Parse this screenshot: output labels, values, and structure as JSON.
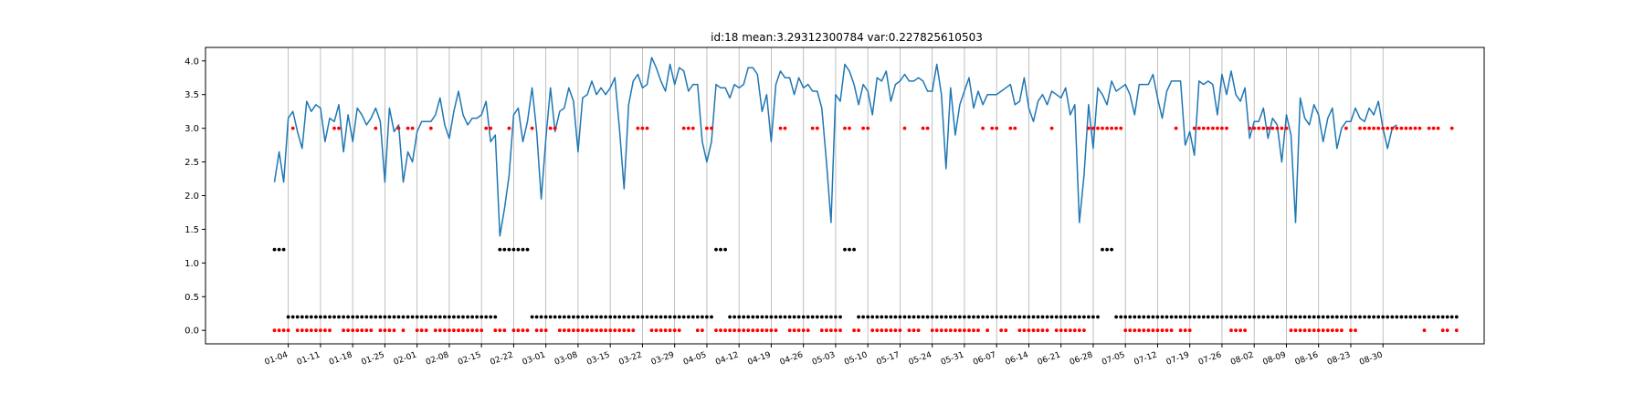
{
  "chart_data": {
    "type": "line",
    "title": "id:18  mean:3.29312300784  var:0.227825610503",
    "xlabel": "",
    "ylabel": "",
    "ylim": [
      -0.2,
      4.2
    ],
    "yticks": [
      0.0,
      0.5,
      1.0,
      1.5,
      2.0,
      2.5,
      3.0,
      3.5,
      4.0
    ],
    "ytick_labels": [
      "0.0",
      "0.5",
      "1.0",
      "1.5",
      "2.0",
      "2.5",
      "3.0",
      "3.5",
      "4.0"
    ],
    "xlim": [
      -15,
      263
    ],
    "xtick_labels": [
      "01-04",
      "01-11",
      "01-18",
      "01-25",
      "02-01",
      "02-08",
      "02-15",
      "02-22",
      "03-01",
      "03-08",
      "03-15",
      "03-22",
      "03-29",
      "04-05",
      "04-12",
      "04-19",
      "04-26",
      "05-03",
      "05-10",
      "05-17",
      "05-24",
      "05-31",
      "06-07",
      "06-14",
      "06-21",
      "06-28",
      "07-05",
      "07-12",
      "07-19",
      "07-26",
      "08-02",
      "08-09",
      "08-16",
      "08-23",
      "08-30"
    ],
    "grid": "vertical lines at each x tick",
    "series": [
      {
        "kind": "line",
        "color": "#1f77b4",
        "x_start": "01-01",
        "values": [
          2.2,
          2.65,
          2.2,
          3.15,
          3.25,
          2.95,
          2.7,
          3.4,
          3.25,
          3.35,
          3.3,
          2.8,
          3.15,
          3.1,
          3.35,
          2.65,
          3.2,
          2.8,
          3.3,
          3.2,
          3.05,
          3.15,
          3.3,
          3.1,
          2.2,
          3.3,
          2.95,
          3.05,
          2.2,
          2.65,
          2.5,
          2.95,
          3.1,
          3.1,
          3.1,
          3.2,
          3.45,
          3.05,
          2.85,
          3.25,
          3.55,
          3.2,
          3.05,
          3.15,
          3.15,
          3.2,
          3.4,
          2.8,
          2.9,
          1.4,
          1.8,
          2.3,
          3.2,
          3.3,
          2.8,
          3.1,
          3.6,
          2.95,
          1.95,
          2.85,
          3.6,
          2.95,
          3.25,
          3.3,
          3.6,
          3.4,
          2.65,
          3.45,
          3.5,
          3.7,
          3.5,
          3.6,
          3.5,
          3.6,
          3.75,
          3.0,
          2.1,
          3.35,
          3.7,
          3.8,
          3.6,
          3.65,
          4.05,
          3.9,
          3.7,
          3.55,
          3.95,
          3.65,
          3.9,
          3.85,
          3.55,
          3.65,
          3.65,
          2.8,
          2.5,
          2.8,
          3.65,
          3.6,
          3.6,
          3.45,
          3.65,
          3.6,
          3.65,
          3.9,
          3.9,
          3.8,
          3.25,
          3.5,
          2.8,
          3.65,
          3.85,
          3.75,
          3.75,
          3.5,
          3.75,
          3.6,
          3.65,
          3.55,
          3.55,
          3.3,
          2.5,
          1.6,
          3.5,
          3.4,
          3.95,
          3.85,
          3.65,
          3.35,
          3.65,
          3.55,
          3.2,
          3.75,
          3.7,
          3.85,
          3.4,
          3.65,
          3.7,
          3.8,
          3.7,
          3.7,
          3.75,
          3.7,
          3.55,
          3.55,
          3.95,
          3.5,
          2.4,
          3.6,
          2.9,
          3.35,
          3.55,
          3.75,
          3.3,
          3.55,
          3.35,
          3.5,
          3.5,
          3.5,
          3.55,
          3.6,
          3.65,
          3.35,
          3.4,
          3.75,
          3.3,
          3.1,
          3.4,
          3.5,
          3.35,
          3.55,
          3.5,
          3.45,
          3.6,
          3.2,
          3.35,
          1.6,
          2.3,
          3.35,
          2.7,
          3.6,
          3.5,
          3.35,
          3.7,
          3.55,
          3.6,
          3.65,
          3.5,
          3.2,
          3.65,
          3.65,
          3.65,
          3.8,
          3.45,
          3.15,
          3.55,
          3.7,
          3.7,
          3.7,
          2.75,
          2.95,
          2.6,
          3.7,
          3.65,
          3.7,
          3.65,
          3.2,
          3.8,
          3.5,
          3.85,
          3.5,
          3.4,
          3.6,
          2.85,
          3.1,
          3.1,
          3.3,
          2.85,
          3.15,
          3.05,
          2.5,
          3.2,
          2.9,
          1.6,
          3.45,
          3.15,
          3.05,
          3.35,
          3.2,
          2.8,
          3.15,
          3.3,
          2.7,
          3.0,
          3.1,
          3.1,
          3.3,
          3.15,
          3.1,
          3.3,
          3.2,
          3.4,
          3.0,
          2.7,
          3.0,
          3.05
        ]
      },
      {
        "kind": "points",
        "color": "#ff0000",
        "y": 3.0,
        "x": [
          4,
          13,
          14,
          22,
          27,
          29,
          30,
          34,
          46,
          47,
          51,
          56,
          60,
          61,
          79,
          80,
          81,
          89,
          90,
          91,
          94,
          95,
          110,
          111,
          117,
          118,
          124,
          125,
          128,
          129,
          137,
          141,
          142,
          154,
          156,
          157,
          160,
          161,
          169,
          177,
          178,
          179,
          180,
          181,
          182,
          183,
          184,
          196,
          200,
          201,
          202,
          203,
          204,
          205,
          206,
          207,
          212,
          213,
          214,
          215,
          216,
          217,
          218,
          219,
          220,
          233,
          236,
          237,
          238,
          239,
          240,
          241,
          242,
          243,
          244,
          245,
          246,
          247,
          248,
          249,
          251,
          252,
          253,
          256
        ]
      },
      {
        "kind": "points",
        "color": "#ff0000",
        "y": 0.0,
        "x": [
          0,
          1,
          2,
          3,
          5,
          6,
          7,
          8,
          9,
          10,
          11,
          12,
          15,
          16,
          17,
          18,
          19,
          20,
          21,
          23,
          24,
          25,
          26,
          28,
          31,
          32,
          33,
          35,
          36,
          37,
          38,
          39,
          40,
          41,
          42,
          43,
          44,
          45,
          48,
          49,
          50,
          52,
          53,
          54,
          55,
          57,
          58,
          59,
          62,
          63,
          64,
          65,
          66,
          67,
          68,
          69,
          70,
          71,
          72,
          73,
          74,
          75,
          76,
          77,
          78,
          82,
          83,
          84,
          85,
          86,
          87,
          88,
          92,
          93,
          96,
          97,
          98,
          99,
          100,
          101,
          102,
          103,
          104,
          105,
          106,
          107,
          108,
          109,
          112,
          113,
          114,
          115,
          116,
          119,
          120,
          121,
          122,
          123,
          126,
          127,
          130,
          131,
          132,
          133,
          134,
          135,
          136,
          138,
          139,
          140,
          143,
          144,
          145,
          146,
          147,
          148,
          149,
          150,
          151,
          152,
          153,
          155,
          158,
          159,
          162,
          163,
          164,
          165,
          166,
          167,
          168,
          170,
          171,
          172,
          173,
          174,
          175,
          176,
          185,
          186,
          187,
          188,
          189,
          190,
          191,
          192,
          193,
          194,
          195,
          197,
          198,
          199,
          208,
          209,
          210,
          211,
          221,
          222,
          223,
          224,
          225,
          226,
          227,
          228,
          229,
          230,
          231,
          232,
          234,
          235,
          250,
          254,
          255,
          257
        ]
      },
      {
        "kind": "points",
        "color": "#000000",
        "y": 1.2,
        "x": [
          0,
          1,
          2,
          49,
          50,
          51,
          52,
          53,
          54,
          55,
          96,
          97,
          98,
          124,
          125,
          126,
          180,
          181,
          182
        ]
      },
      {
        "kind": "points",
        "color": "#000000",
        "y": 0.2,
        "x": [
          3,
          4,
          5,
          6,
          7,
          8,
          9,
          10,
          11,
          12,
          13,
          14,
          15,
          16,
          17,
          18,
          19,
          20,
          21,
          22,
          23,
          24,
          25,
          26,
          27,
          28,
          29,
          30,
          31,
          32,
          33,
          34,
          35,
          36,
          37,
          38,
          39,
          40,
          41,
          42,
          43,
          44,
          45,
          46,
          47,
          48,
          56,
          57,
          58,
          59,
          60,
          61,
          62,
          63,
          64,
          65,
          66,
          67,
          68,
          69,
          70,
          71,
          72,
          73,
          74,
          75,
          76,
          77,
          78,
          79,
          80,
          81,
          82,
          83,
          84,
          85,
          86,
          87,
          88,
          89,
          90,
          91,
          92,
          93,
          94,
          95,
          99,
          100,
          101,
          102,
          103,
          104,
          105,
          106,
          107,
          108,
          109,
          110,
          111,
          112,
          113,
          114,
          115,
          116,
          117,
          118,
          119,
          120,
          121,
          122,
          123,
          127,
          128,
          129,
          130,
          131,
          132,
          133,
          134,
          135,
          136,
          137,
          138,
          139,
          140,
          141,
          142,
          143,
          144,
          145,
          146,
          147,
          148,
          149,
          150,
          151,
          152,
          153,
          154,
          155,
          156,
          157,
          158,
          159,
          160,
          161,
          162,
          163,
          164,
          165,
          166,
          167,
          168,
          169,
          170,
          171,
          172,
          173,
          174,
          175,
          176,
          177,
          178,
          179,
          183,
          184,
          185,
          186,
          187,
          188,
          189,
          190,
          191,
          192,
          193,
          194,
          195,
          196,
          197,
          198,
          199,
          200,
          201,
          202,
          203,
          204,
          205,
          206,
          207,
          208,
          209,
          210,
          211,
          212,
          213,
          214,
          215,
          216,
          217,
          218,
          219,
          220,
          221,
          222,
          223,
          224,
          225,
          226,
          227,
          228,
          229,
          230,
          231,
          232,
          233,
          234,
          235,
          236,
          237,
          238,
          239,
          240,
          241,
          242,
          243,
          244,
          245,
          246,
          247,
          248,
          249,
          250,
          251,
          252,
          253,
          254,
          255,
          256,
          257
        ]
      }
    ]
  }
}
